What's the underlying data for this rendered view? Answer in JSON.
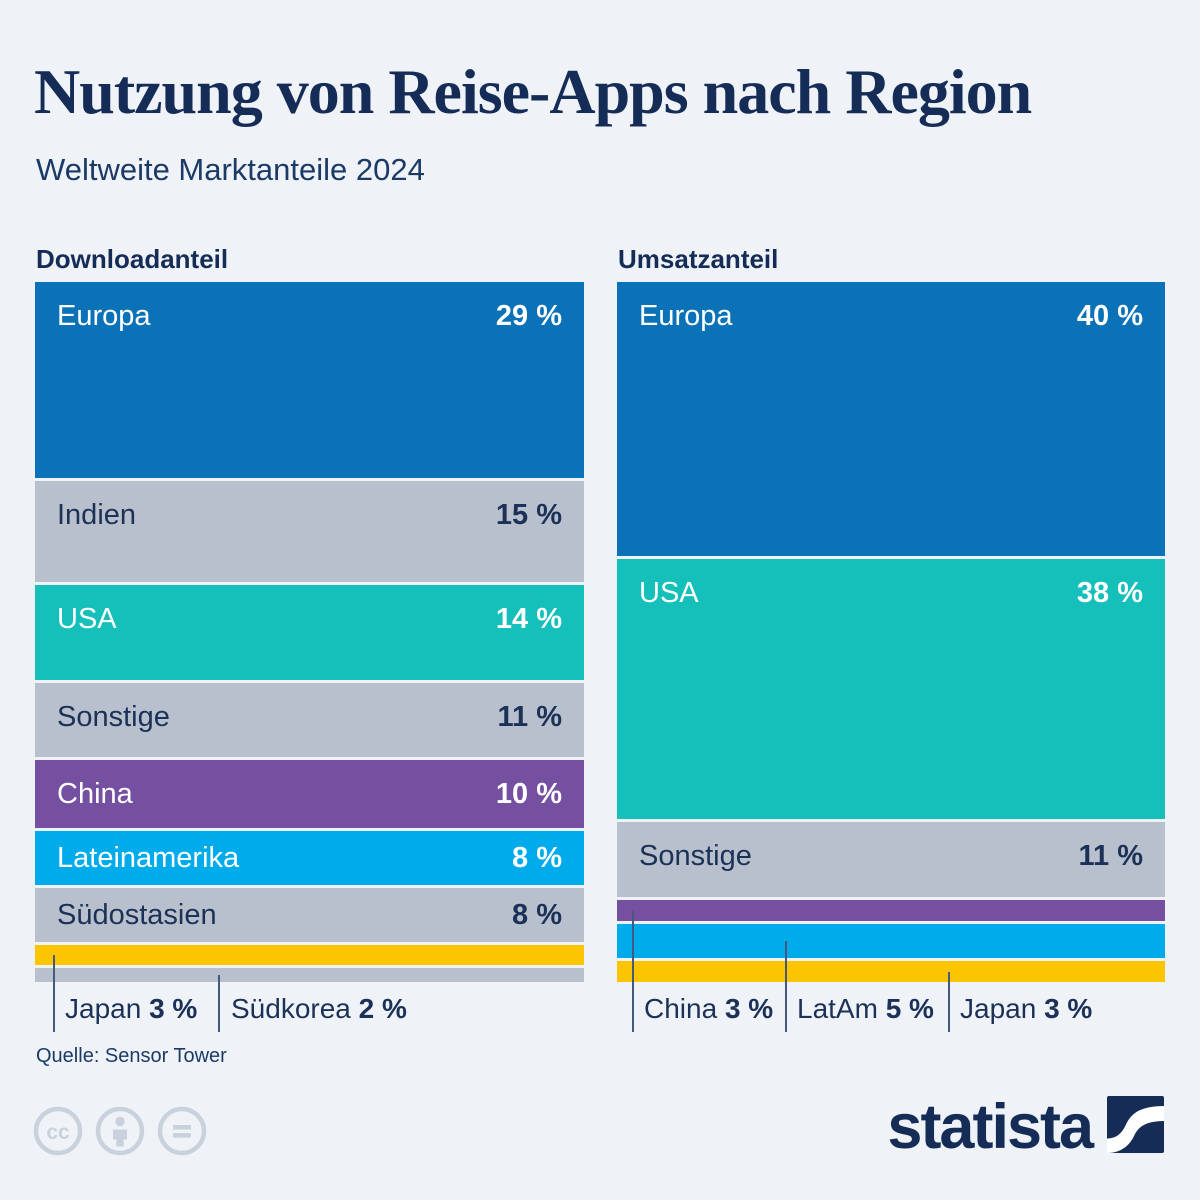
{
  "background": "#eff3f8",
  "title": "Nutzung von Reise-Apps nach Region",
  "subtitle": "Weltweite Marktanteile 2024",
  "source": "Quelle: Sensor Tower",
  "branding": {
    "logo_text": "statista",
    "logo_color": "#152c56"
  },
  "license_icons": [
    "cc-icon",
    "attribution-icon",
    "no-derivatives-icon"
  ],
  "palette": {
    "blue": "#0b72b8",
    "teal": "#15bfba",
    "gray": "#b9c0cd",
    "purple": "#754fa0",
    "light_blue": "#00abec",
    "yellow": "#fdc500",
    "navy_text": "#1b3157",
    "white_text": "#ffffff",
    "background": "#eff3f8"
  },
  "chart_data": [
    {
      "type": "bar",
      "orientation": "stacked-vertical",
      "title": "Downloadanteil",
      "unit": "%",
      "total": 100,
      "categories": [
        "Europa",
        "Indien",
        "USA",
        "Sonstige",
        "China",
        "Lateinamerika",
        "Südostasien",
        "Japan",
        "Südkorea"
      ],
      "values": [
        29,
        15,
        14,
        11,
        10,
        8,
        8,
        3,
        2
      ],
      "segments": [
        {
          "label": "Europa",
          "value": 29,
          "display": "29 %",
          "color": "#0b72b8",
          "text_color": "#ffffff",
          "label_inside": true
        },
        {
          "label": "Indien",
          "value": 15,
          "display": "15 %",
          "color": "#b9c0cd",
          "text_color": "#1b3157",
          "label_inside": true
        },
        {
          "label": "USA",
          "value": 14,
          "display": "14 %",
          "color": "#15bfba",
          "text_color": "#ffffff",
          "label_inside": true
        },
        {
          "label": "Sonstige",
          "value": 11,
          "display": "11 %",
          "color": "#b9c0cd",
          "text_color": "#1b3157",
          "label_inside": true
        },
        {
          "label": "China",
          "value": 10,
          "display": "10 %",
          "color": "#754fa0",
          "text_color": "#ffffff",
          "label_inside": true
        },
        {
          "label": "Lateinamerika",
          "value": 8,
          "display": "8 %",
          "color": "#00abec",
          "text_color": "#ffffff",
          "label_inside": true
        },
        {
          "label": "Südostasien",
          "value": 8,
          "display": "8 %",
          "color": "#b9c0cd",
          "text_color": "#1b3157",
          "label_inside": true
        },
        {
          "label": "Japan",
          "value": 3,
          "display": "3 %",
          "color": "#fdc500",
          "label_inside": false
        },
        {
          "label": "Südkorea",
          "value": 2,
          "display": "2 %",
          "color": "#b9c0cd",
          "label_inside": false
        }
      ]
    },
    {
      "type": "bar",
      "orientation": "stacked-vertical",
      "title": "Umsatzanteil",
      "unit": "%",
      "total": 100,
      "categories": [
        "Europa",
        "USA",
        "Sonstige",
        "China",
        "LatAm",
        "Japan"
      ],
      "values": [
        40,
        38,
        11,
        3,
        5,
        3
      ],
      "segments": [
        {
          "label": "Europa",
          "value": 40,
          "display": "40 %",
          "color": "#0b72b8",
          "text_color": "#ffffff",
          "label_inside": true
        },
        {
          "label": "USA",
          "value": 38,
          "display": "38 %",
          "color": "#15bfba",
          "text_color": "#ffffff",
          "label_inside": true
        },
        {
          "label": "Sonstige",
          "value": 11,
          "display": "11 %",
          "color": "#b9c0cd",
          "text_color": "#1b3157",
          "label_inside": true
        },
        {
          "label": "China",
          "value": 3,
          "display": "3 %",
          "color": "#754fa0",
          "label_inside": false
        },
        {
          "label": "LatAm",
          "value": 5,
          "display": "5 %",
          "color": "#00abec",
          "label_inside": false
        },
        {
          "label": "Japan",
          "value": 3,
          "display": "3 %",
          "color": "#fdc500",
          "label_inside": false
        }
      ]
    }
  ]
}
